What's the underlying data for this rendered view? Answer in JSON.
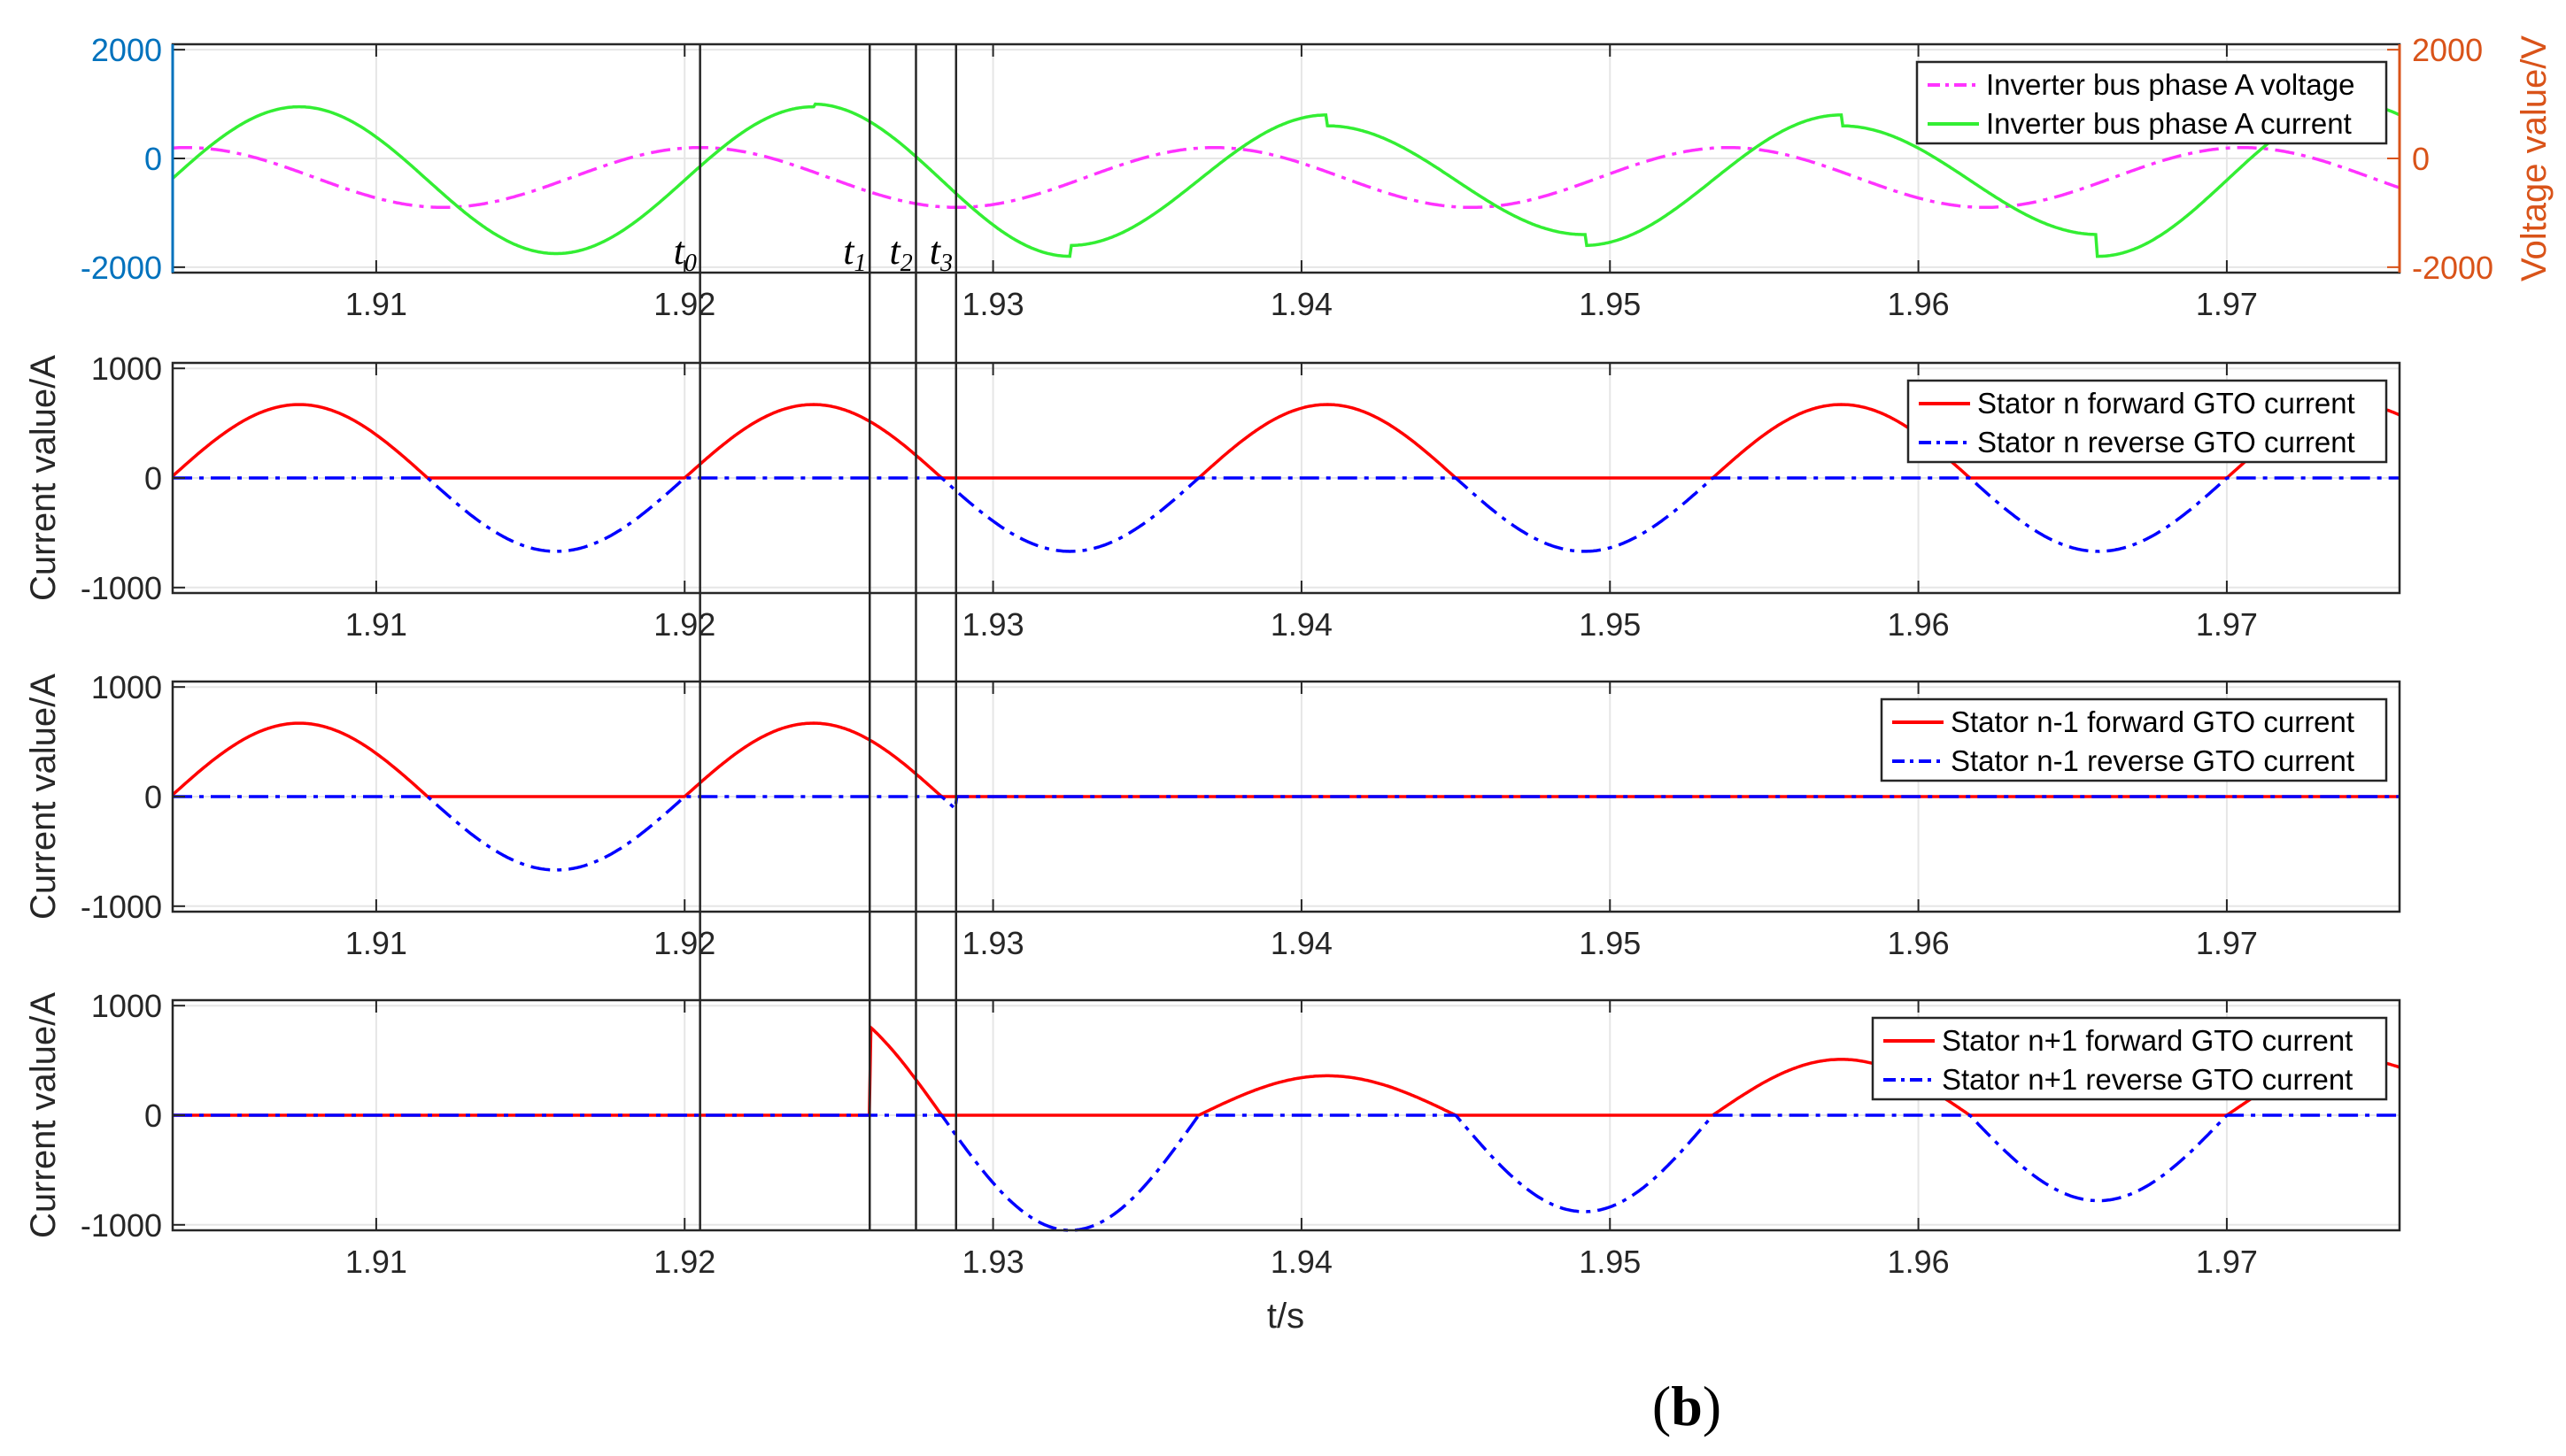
{
  "chart_data": [
    {
      "type": "line",
      "xlabel": "",
      "ylabel": "",
      "ylabel_right": "Voltage value/V",
      "xlim": [
        1.9034,
        1.9756
      ],
      "ylim": [
        -2100,
        2100
      ],
      "ylim_right": [
        -2100,
        2100
      ],
      "x_ticks": [
        "1.91",
        "1.92",
        "1.93",
        "1.94",
        "1.95",
        "1.96",
        "1.97"
      ],
      "y_ticks": [
        "2000",
        "0",
        "-2000"
      ],
      "y_ticks_right": [
        "2000",
        "0",
        "-2000"
      ],
      "legend_position": "top-right",
      "grid": true,
      "markers": [
        {
          "label": "t",
          "sub": "0",
          "x": 1.9205
        },
        {
          "label": "t",
          "sub": "1",
          "x": 1.926
        },
        {
          "label": "t",
          "sub": "2",
          "x": 1.9275
        },
        {
          "label": "t",
          "sub": "3",
          "x": 1.9288
        }
      ],
      "series": [
        {
          "name": "Inverter bus phase A voltage",
          "color": "#ff33ff",
          "style": "dash-dot",
          "axis": "right",
          "function": "sine",
          "amplitude": 550,
          "offset": -350,
          "frequency_hz": 60,
          "peak_at": 1.9205
        },
        {
          "name": "Inverter bus phase A current",
          "color": "#33ee33",
          "style": "solid",
          "axis": "left",
          "function": "sine",
          "offset": -400,
          "frequency_hz": 60,
          "peak_at": 1.9075,
          "half_cycle_amplitudes": [
            {
              "from": 1.8992,
              "to": 1.9075,
              "amplitude": 1350
            },
            {
              "from": 1.9075,
              "to": 1.9158,
              "amplitude": 1350
            },
            {
              "from": 1.9158,
              "to": 1.9242,
              "amplitude": 1350
            },
            {
              "from": 1.9242,
              "to": 1.9325,
              "amplitude": 1400
            },
            {
              "from": 1.9325,
              "to": 1.9408,
              "amplitude": 1200
            },
            {
              "from": 1.9408,
              "to": 1.9492,
              "amplitude": 1000
            },
            {
              "from": 1.9492,
              "to": 1.9575,
              "amplitude": 1200
            },
            {
              "from": 1.9575,
              "to": 1.9658,
              "amplitude": 1000
            },
            {
              "from": 1.9658,
              "to": 1.9742,
              "amplitude": 1400
            },
            {
              "from": 1.9742,
              "to": 1.9825,
              "amplitude": 1400
            }
          ]
        }
      ]
    },
    {
      "type": "line",
      "xlabel": "",
      "ylabel": "Current value/A",
      "xlim": [
        1.9034,
        1.9756
      ],
      "ylim": [
        -1050,
        1050
      ],
      "x_ticks": [
        "1.91",
        "1.92",
        "1.93",
        "1.94",
        "1.95",
        "1.96",
        "1.97"
      ],
      "y_ticks": [
        "1000",
        "0",
        "-1000"
      ],
      "legend_position": "top-right",
      "grid": true,
      "series": [
        {
          "name": "Stator n forward GTO current",
          "color": "#ff0000",
          "style": "solid",
          "polarity": "positive",
          "function": "sine",
          "frequency_hz": 60,
          "peak_at": 1.9075,
          "active_from": 1.9034,
          "active_to": 1.9756,
          "half_cycle_amplitudes": [
            {
              "from": 1.8992,
              "to": 1.9158,
              "amplitude": 670
            },
            {
              "from": 1.9158,
              "to": 1.9325,
              "amplitude": 670
            },
            {
              "from": 1.9325,
              "to": 1.9492,
              "amplitude": 670
            },
            {
              "from": 1.9492,
              "to": 1.9658,
              "amplitude": 670
            },
            {
              "from": 1.9658,
              "to": 1.9825,
              "amplitude": 670
            }
          ]
        },
        {
          "name": "Stator n reverse GTO current",
          "color": "#0000ff",
          "style": "dash-dot",
          "polarity": "negative",
          "function": "sine",
          "frequency_hz": 60,
          "peak_at": 1.9075,
          "active_from": 1.9034,
          "active_to": 1.9756,
          "half_cycle_amplitudes": [
            {
              "from": 1.8992,
              "to": 1.9158,
              "amplitude": 670
            },
            {
              "from": 1.9158,
              "to": 1.9325,
              "amplitude": 670
            },
            {
              "from": 1.9325,
              "to": 1.9492,
              "amplitude": 670
            },
            {
              "from": 1.9492,
              "to": 1.9658,
              "amplitude": 670
            },
            {
              "from": 1.9658,
              "to": 1.9825,
              "amplitude": 670
            }
          ]
        }
      ]
    },
    {
      "type": "line",
      "xlabel": "",
      "ylabel": "Current value/A",
      "xlim": [
        1.9034,
        1.9756
      ],
      "ylim": [
        -1050,
        1050
      ],
      "x_ticks": [
        "1.91",
        "1.92",
        "1.93",
        "1.94",
        "1.95",
        "1.96",
        "1.97"
      ],
      "y_ticks": [
        "1000",
        "0",
        "-1000"
      ],
      "legend_position": "top-right",
      "grid": true,
      "series": [
        {
          "name": "Stator n-1 forward GTO current",
          "color": "#ff0000",
          "style": "solid",
          "polarity": "positive",
          "function": "sine",
          "frequency_hz": 60,
          "peak_at": 1.9075,
          "active_from": 1.9034,
          "active_to": 1.9288,
          "half_cycle_amplitudes": [
            {
              "from": 1.8992,
              "to": 1.9825,
              "amplitude": 670
            }
          ]
        },
        {
          "name": "Stator n-1 reverse GTO current",
          "color": "#0000ff",
          "style": "dash-dot",
          "polarity": "negative",
          "function": "sine",
          "frequency_hz": 60,
          "peak_at": 1.9075,
          "active_from": 1.9034,
          "active_to": 1.9288,
          "half_cycle_amplitudes": [
            {
              "from": 1.8992,
              "to": 1.9825,
              "amplitude": 670
            }
          ]
        }
      ]
    },
    {
      "type": "line",
      "xlabel": "t/s",
      "ylabel": "Current value/A",
      "xlim": [
        1.9034,
        1.9756
      ],
      "ylim": [
        -1050,
        1050
      ],
      "x_ticks": [
        "1.91",
        "1.92",
        "1.93",
        "1.94",
        "1.95",
        "1.96",
        "1.97"
      ],
      "y_ticks": [
        "1000",
        "0",
        "-1000"
      ],
      "legend_position": "top-right",
      "grid": true,
      "series": [
        {
          "name": "Stator n+1 forward GTO current",
          "color": "#ff0000",
          "style": "solid",
          "polarity": "positive",
          "function": "sine",
          "frequency_hz": 60,
          "peak_at": 1.9075,
          "active_from": 1.926,
          "active_to": 1.9756,
          "half_cycle_amplitudes": [
            {
              "from": 1.9158,
              "to": 1.9325,
              "amplitude": 1050
            },
            {
              "from": 1.9325,
              "to": 1.9492,
              "amplitude": 360
            },
            {
              "from": 1.9492,
              "to": 1.9658,
              "amplitude": 510
            },
            {
              "from": 1.9658,
              "to": 1.9825,
              "amplitude": 510
            }
          ]
        },
        {
          "name": "Stator n+1 reverse GTO current",
          "color": "#0000ff",
          "style": "dash-dot",
          "polarity": "negative",
          "function": "sine",
          "frequency_hz": 60,
          "peak_at": 1.9075,
          "active_from": 1.926,
          "active_to": 1.9756,
          "half_cycle_amplitudes": [
            {
              "from": 1.9158,
              "to": 1.9408,
              "amplitude": 1050
            },
            {
              "from": 1.9408,
              "to": 1.9575,
              "amplitude": 880
            },
            {
              "from": 1.9575,
              "to": 1.9742,
              "amplitude": 780
            },
            {
              "from": 1.9742,
              "to": 1.9908,
              "amplitude": 780
            }
          ]
        }
      ]
    }
  ],
  "caption": {
    "open": "(",
    "letter": "b",
    "close": ")"
  },
  "colors": {
    "left_axis": "#0072bd",
    "right_axis": "#d95319",
    "frame": "#262626"
  }
}
